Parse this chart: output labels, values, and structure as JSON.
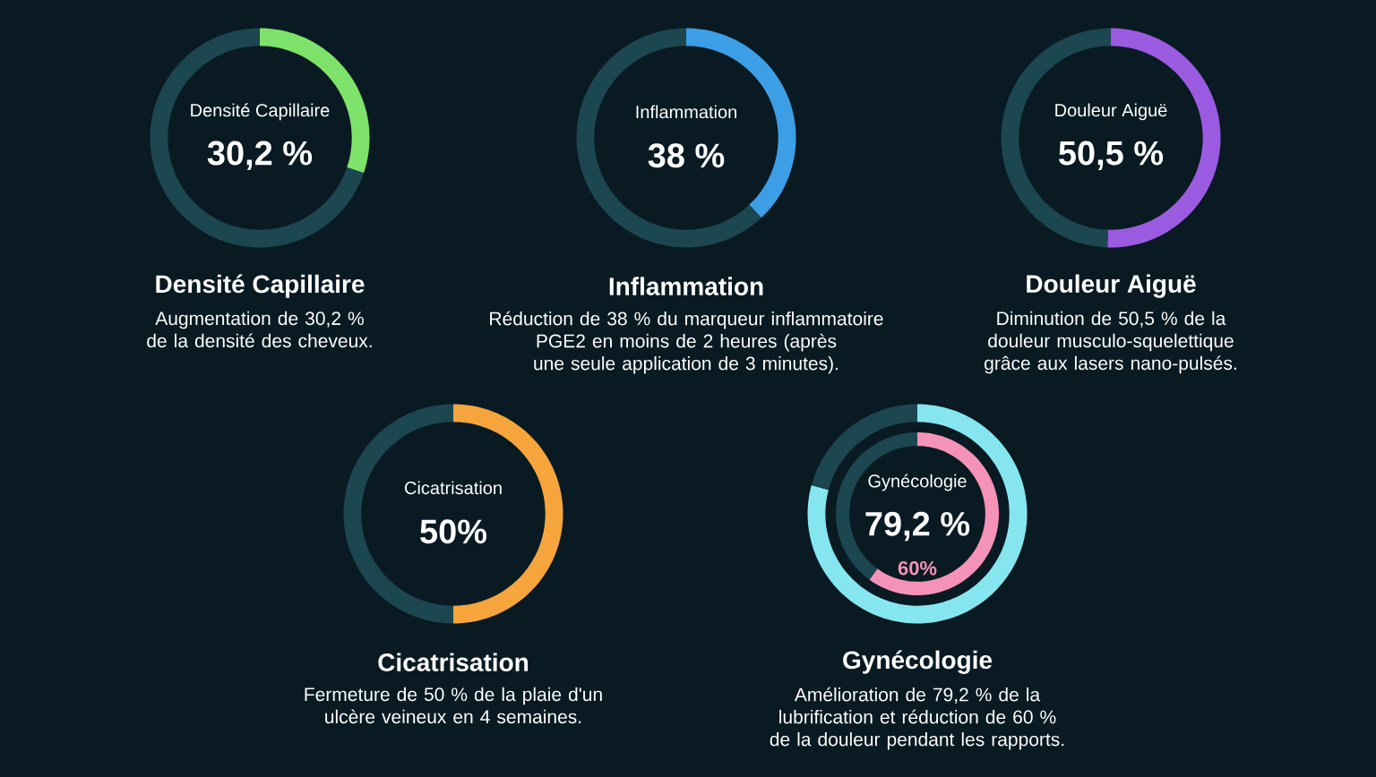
{
  "chart_data": [
    {
      "type": "donut",
      "title": "Densité Capillaire",
      "subtitle": "Augmentation de 30,2 % de la densité des cheveux.",
      "categories": [
        "Densité Capillaire",
        null
      ],
      "values": [
        30.2,
        69.8
      ],
      "colors": [
        "#7ee26a",
        "#1c4650"
      ],
      "value_labels": [
        "30,2 %",
        null
      ]
    },
    {
      "type": "donut",
      "title": "Inflammation",
      "subtitle": "Réduction de 38 % du marqueur inflammatoire PGE2 en moins de 2 heures (après une seule application de 3 minutes).",
      "categories": [
        "Inflammation",
        null
      ],
      "values": [
        38,
        62
      ],
      "colors": [
        "#3c9fe6",
        "#1c4650"
      ],
      "value_labels": [
        "38 %",
        null
      ]
    },
    {
      "type": "donut",
      "title": "Douleur Aiguë",
      "subtitle": "Diminution de 50,5 % de la douleur musculo-squelettique grâce aux lasers nano-pulsés.",
      "categories": [
        "Douleur Aiguë",
        null
      ],
      "values": [
        50.5,
        49.5
      ],
      "colors": [
        "#9b5be0",
        "#1c4650"
      ],
      "value_labels": [
        "50,5 %",
        null
      ]
    },
    {
      "type": "donut",
      "title": "Cicatrisation",
      "subtitle": "Fermeture de 50 % de la plaie d'un ulcère veineux en 4 semaines.",
      "categories": [
        "Cicatrisation",
        null
      ],
      "values": [
        50,
        50
      ],
      "colors": [
        "#f5a53c",
        "#1c4650"
      ],
      "value_labels": [
        "50%",
        null
      ]
    },
    {
      "type": "donut",
      "title": "Gynécologie",
      "subtitle": "Amélioration de 79,2 % de la lubrification et réduction de 60 % de la douleur pendant les rapports.",
      "categories": [
        "Gynécologie",
        null
      ],
      "series": [
        {
          "values": [
            79.2,
            20.8
          ],
          "colors": [
            "#86e6f0",
            "#1c4650"
          ],
          "value_labels": [
            "79,2 %",
            null
          ]
        },
        {
          "values": [
            60,
            40
          ],
          "colors": [
            "#f592b8",
            "#1c4650"
          ],
          "value_labels": [
            "60%",
            null
          ]
        }
      ]
    }
  ]
}
